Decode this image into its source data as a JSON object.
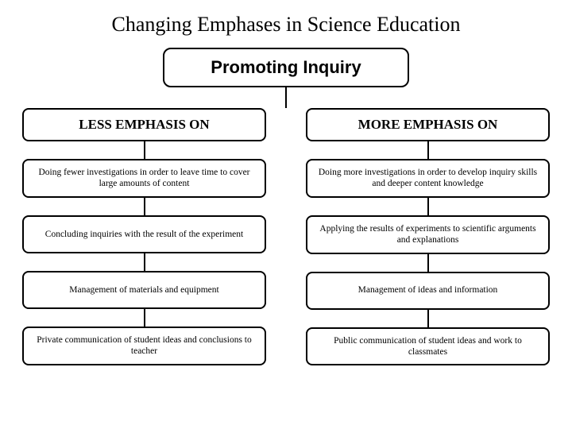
{
  "title": "Changing Emphases in Science Education",
  "subtitle": "Promoting Inquiry",
  "colors": {
    "background": "#ffffff",
    "border": "#000000",
    "text": "#000000"
  },
  "left": {
    "header": "LESS EMPHASIS ON",
    "rows": [
      "Doing fewer investigations in order to leave time to cover large amounts of content",
      "Concluding inquiries with the result of the experiment",
      "Management of materials and equipment",
      "Private communication of student ideas and conclusions to teacher"
    ]
  },
  "right": {
    "header": "MORE EMPHASIS ON",
    "rows": [
      "Doing more investigations in order to develop inquiry skills and deeper content knowledge",
      "Applying the results of experiments to scientific arguments and explanations",
      "Management of ideas and information",
      "Public communication of student ideas and work to classmates"
    ]
  }
}
